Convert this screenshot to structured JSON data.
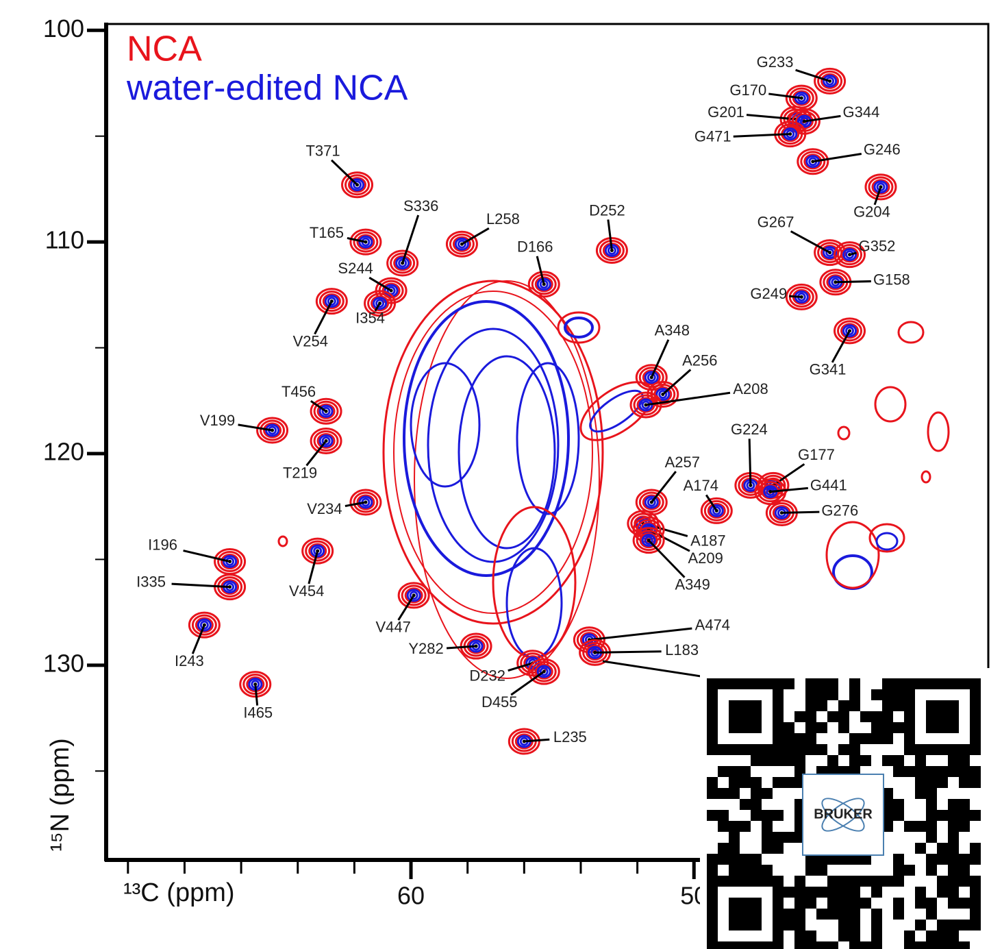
{
  "chart_data": {
    "type": "spectrum2d",
    "series": [
      {
        "name": "NCA",
        "color": "#e8141c"
      },
      {
        "name": "water-edited NCA",
        "color": "#1a1adc"
      }
    ],
    "x_label": "¹³C (ppm)",
    "y_label": "¹⁵N (ppm)",
    "xlim": [
      70.77,
      39.6
    ],
    "ylim": [
      99.7,
      139.2
    ],
    "xticks": [
      60,
      50
    ],
    "xminor_ticks": [
      70,
      68,
      66,
      64,
      62,
      58,
      56,
      54,
      52
    ],
    "yticks": [
      100,
      110,
      120,
      130
    ],
    "yminor_ticks": [
      105,
      115,
      125,
      135
    ],
    "peaks": [
      {
        "label": "T371",
        "x": 61.9,
        "y": 107.3
      },
      {
        "label": "T165",
        "x": 61.6,
        "y": 110.0
      },
      {
        "label": "S336",
        "x": 60.3,
        "y": 111.0
      },
      {
        "label": "L258",
        "x": 58.2,
        "y": 110.1
      },
      {
        "label": "D166",
        "x": 55.3,
        "y": 112.0
      },
      {
        "label": "D252",
        "x": 52.9,
        "y": 110.4
      },
      {
        "label": "S244",
        "x": 60.7,
        "y": 112.3
      },
      {
        "label": "I354",
        "x": 61.1,
        "y": 112.9
      },
      {
        "label": "V254",
        "x": 62.8,
        "y": 112.8
      },
      {
        "label": "G233",
        "x": 45.2,
        "y": 102.4
      },
      {
        "label": "G170",
        "x": 46.2,
        "y": 103.2
      },
      {
        "label": "G201",
        "x": 46.4,
        "y": 104.2
      },
      {
        "label": "G344",
        "x": 46.1,
        "y": 104.3
      },
      {
        "label": "G471",
        "x": 46.6,
        "y": 104.9
      },
      {
        "label": "G246",
        "x": 45.8,
        "y": 106.2
      },
      {
        "label": "G204",
        "x": 43.4,
        "y": 107.4
      },
      {
        "label": "G267",
        "x": 45.2,
        "y": 110.5
      },
      {
        "label": "G352",
        "x": 44.5,
        "y": 110.6
      },
      {
        "label": "G158",
        "x": 45.0,
        "y": 111.9
      },
      {
        "label": "G249",
        "x": 46.2,
        "y": 112.6
      },
      {
        "label": "G341",
        "x": 44.5,
        "y": 114.2
      },
      {
        "label": "A348",
        "x": 51.5,
        "y": 116.4
      },
      {
        "label": "A256",
        "x": 51.1,
        "y": 117.2
      },
      {
        "label": "A208",
        "x": 51.7,
        "y": 117.7
      },
      {
        "label": "T456",
        "x": 63.0,
        "y": 118.0
      },
      {
        "label": "V199",
        "x": 64.9,
        "y": 118.9
      },
      {
        "label": "T219",
        "x": 63.0,
        "y": 119.4
      },
      {
        "label": "G224",
        "x": 48.0,
        "y": 121.5
      },
      {
        "label": "G177",
        "x": 47.2,
        "y": 121.5
      },
      {
        "label": "G441",
        "x": 47.3,
        "y": 121.8
      },
      {
        "label": "G276",
        "x": 46.9,
        "y": 122.8
      },
      {
        "label": "A257",
        "x": 51.5,
        "y": 122.3
      },
      {
        "label": "A174",
        "x": 49.2,
        "y": 122.7
      },
      {
        "label": "V234",
        "x": 61.6,
        "y": 122.3
      },
      {
        "label": "A187",
        "x": 51.8,
        "y": 123.3
      },
      {
        "label": "A209",
        "x": 51.6,
        "y": 123.6
      },
      {
        "label": "A349",
        "x": 51.6,
        "y": 124.1
      },
      {
        "label": "I196",
        "x": 66.4,
        "y": 125.1
      },
      {
        "label": "V454",
        "x": 63.3,
        "y": 124.6
      },
      {
        "label": "I335",
        "x": 66.4,
        "y": 126.3
      },
      {
        "label": "V447",
        "x": 59.9,
        "y": 126.7
      },
      {
        "label": "A474",
        "x": 53.7,
        "y": 128.8
      },
      {
        "label": "L183",
        "x": 53.5,
        "y": 129.4
      },
      {
        "label": "Y282",
        "x": 57.7,
        "y": 129.1
      },
      {
        "label": "I243",
        "x": 67.3,
        "y": 128.1
      },
      {
        "label": "D232",
        "x": 55.7,
        "y": 129.9
      },
      {
        "label": "D455",
        "x": 55.3,
        "y": 130.3
      },
      {
        "label": "I465",
        "x": 65.5,
        "y": 130.9
      },
      {
        "label": "L235",
        "x": 56.0,
        "y": 133.6
      }
    ],
    "qr_logo": "BRUKER"
  }
}
